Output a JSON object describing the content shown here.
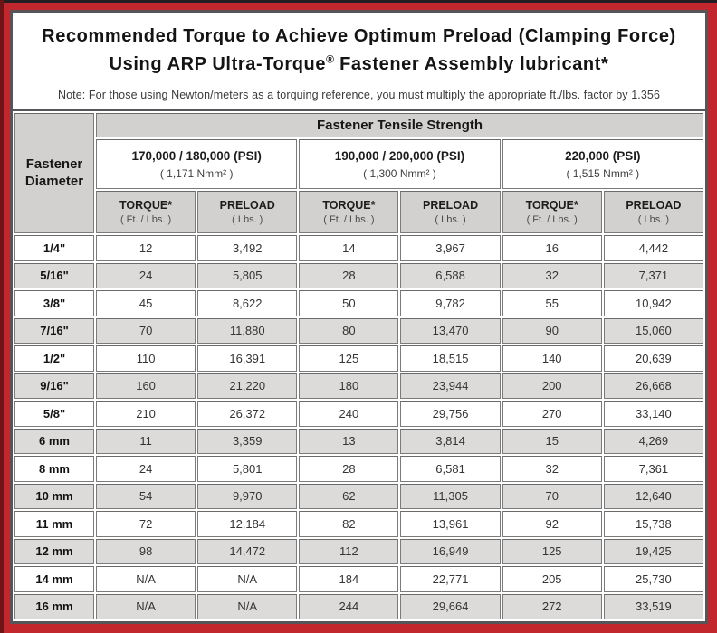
{
  "colors": {
    "frame_red": "#c1272d",
    "edge_dark": "#241f20",
    "edge_maroon": "#6d1416",
    "panel_border": "#55555a",
    "header_gray": "#d3d1cf",
    "stripe_gray": "#dcdbd9",
    "cell_border": "#7b7b7b"
  },
  "header": {
    "title_line1": "Recommended Torque to Achieve Optimum Preload (Clamping Force)",
    "title_line2_pre": "Using ARP Ultra-Torque",
    "title_line2_reg": "®",
    "title_line2_post": " Fastener Assembly lubricant*",
    "note": "Note: For those using Newton/meters as a torquing reference, you must multiply the appropriate ft./lbs. factor by 1.356"
  },
  "table": {
    "corner_header_line1": "Fastener",
    "corner_header_line2": "Diameter",
    "tensile_strength_header": "Fastener Tensile Strength",
    "psi_groups": [
      {
        "psi": "170,000 / 180,000 (PSI)",
        "nmm": "( 1,171 Nmm² )"
      },
      {
        "psi": "190,000 / 200,000 (PSI)",
        "nmm": "( 1,300 Nmm² )"
      },
      {
        "psi": "220,000 (PSI)",
        "nmm": "( 1,515 Nmm² )"
      }
    ],
    "col_headers": [
      {
        "label": "TORQUE*",
        "sub": "( Ft. / Lbs. )"
      },
      {
        "label": "PRELOAD",
        "sub": "( Lbs. )"
      },
      {
        "label": "TORQUE*",
        "sub": "( Ft. / Lbs. )"
      },
      {
        "label": "PRELOAD",
        "sub": "( Lbs. )"
      },
      {
        "label": "TORQUE*",
        "sub": "( Ft. / Lbs. )"
      },
      {
        "label": "PRELOAD",
        "sub": "( Lbs. )"
      }
    ],
    "rows": [
      {
        "diameter": "1/4\"",
        "values": [
          "12",
          "3,492",
          "14",
          "3,967",
          "16",
          "4,442"
        ]
      },
      {
        "diameter": "5/16\"",
        "values": [
          "24",
          "5,805",
          "28",
          "6,588",
          "32",
          "7,371"
        ]
      },
      {
        "diameter": "3/8\"",
        "values": [
          "45",
          "8,622",
          "50",
          "9,782",
          "55",
          "10,942"
        ]
      },
      {
        "diameter": "7/16\"",
        "values": [
          "70",
          "11,880",
          "80",
          "13,470",
          "90",
          "15,060"
        ]
      },
      {
        "diameter": "1/2\"",
        "values": [
          "110",
          "16,391",
          "125",
          "18,515",
          "140",
          "20,639"
        ]
      },
      {
        "diameter": "9/16\"",
        "values": [
          "160",
          "21,220",
          "180",
          "23,944",
          "200",
          "26,668"
        ]
      },
      {
        "diameter": "5/8\"",
        "values": [
          "210",
          "26,372",
          "240",
          "29,756",
          "270",
          "33,140"
        ]
      },
      {
        "diameter": "6 mm",
        "values": [
          "11",
          "3,359",
          "13",
          "3,814",
          "15",
          "4,269"
        ]
      },
      {
        "diameter": "8 mm",
        "values": [
          "24",
          "5,801",
          "28",
          "6,581",
          "32",
          "7,361"
        ]
      },
      {
        "diameter": "10 mm",
        "values": [
          "54",
          "9,970",
          "62",
          "11,305",
          "70",
          "12,640"
        ]
      },
      {
        "diameter": "11 mm",
        "values": [
          "72",
          "12,184",
          "82",
          "13,961",
          "92",
          "15,738"
        ]
      },
      {
        "diameter": "12 mm",
        "values": [
          "98",
          "14,472",
          "112",
          "16,949",
          "125",
          "19,425"
        ]
      },
      {
        "diameter": "14 mm",
        "values": [
          "N/A",
          "N/A",
          "184",
          "22,771",
          "205",
          "25,730"
        ]
      },
      {
        "diameter": "16 mm",
        "values": [
          "N/A",
          "N/A",
          "244",
          "29,664",
          "272",
          "33,519"
        ]
      }
    ]
  }
}
